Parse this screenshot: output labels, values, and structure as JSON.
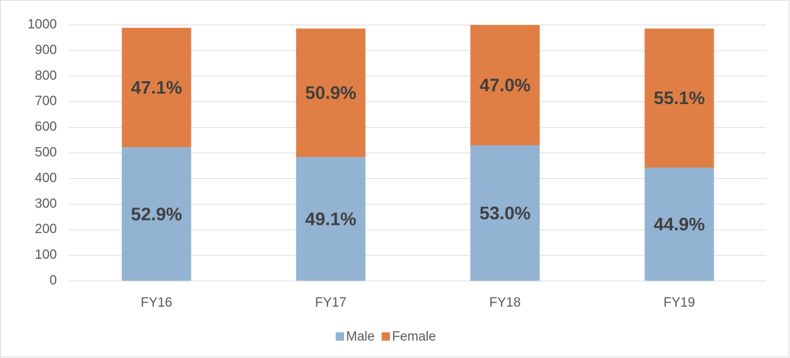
{
  "chart_data": {
    "type": "stacked_bar",
    "categories": [
      "FY16",
      "FY17",
      "FY18",
      "FY19"
    ],
    "series": [
      {
        "name": "Male",
        "color": "#93b3d3",
        "values": [
          523,
          484,
          530,
          443
        ],
        "data_labels": [
          "52.9%",
          "49.1%",
          "53.0%",
          "44.9%"
        ]
      },
      {
        "name": "Female",
        "color": "#e07f45",
        "values": [
          466,
          502,
          470,
          543
        ],
        "data_labels": [
          "47.1%",
          "50.9%",
          "47.0%",
          "55.1%"
        ]
      }
    ],
    "ylim": [
      0,
      1000
    ],
    "yticks": [
      0,
      100,
      200,
      300,
      400,
      500,
      600,
      700,
      800,
      900,
      1000
    ],
    "grid": true,
    "legend": "bottom"
  }
}
